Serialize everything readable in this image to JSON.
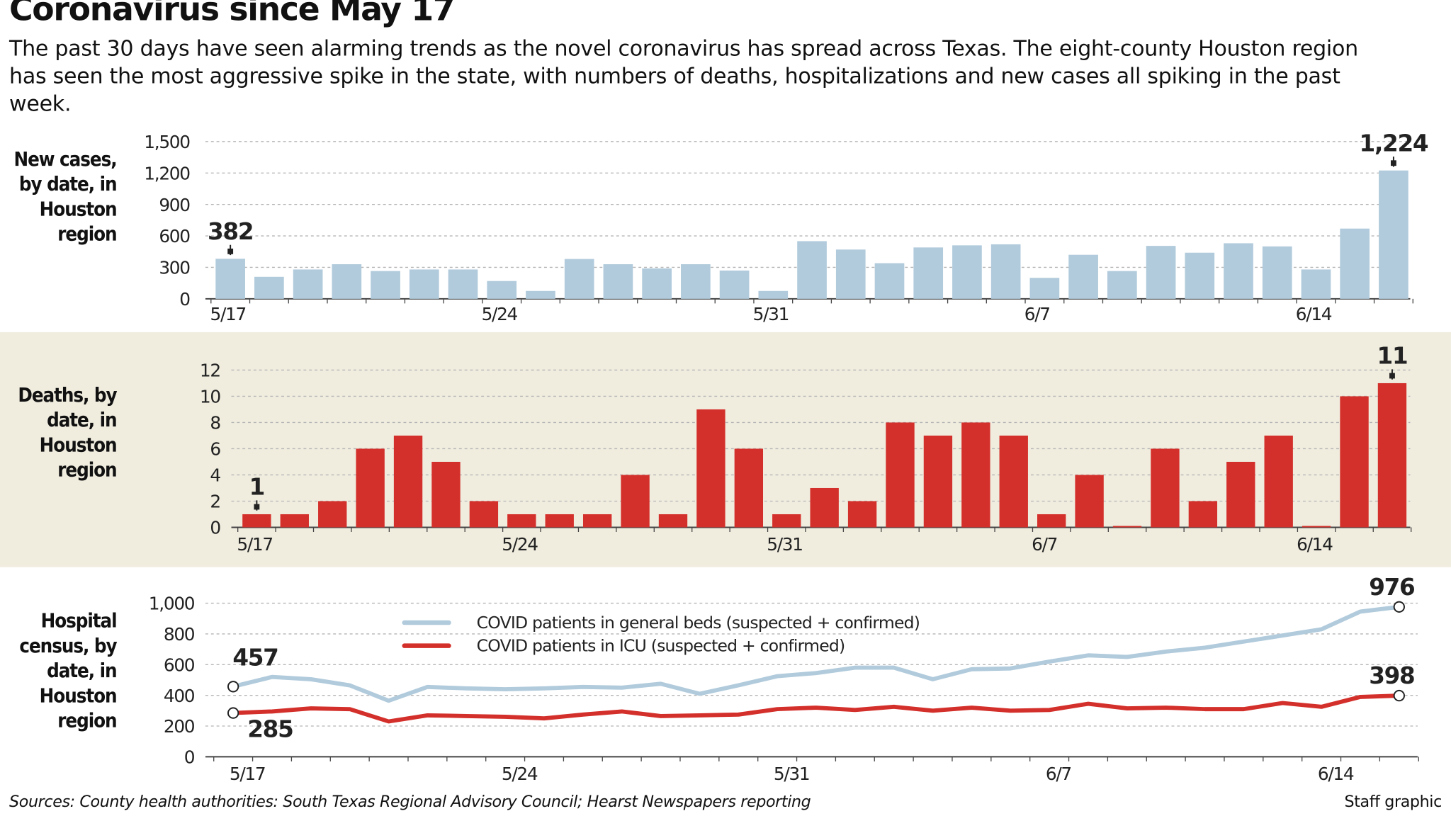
{
  "header": {
    "title": "Coronavirus since May 17",
    "intro": "The past 30 days have seen alarming trends as the novel coronavirus has spread across Texas. The eight-county Houston region has seen the most aggressive spike in the state, with numbers of deaths, hospitalizations and new cases all spiking in the past week."
  },
  "footer": {
    "sources": "Sources: County health authorities:  South Texas Regional Advisory Council; Hearst Newspapers reporting",
    "credit": "Staff graphic"
  },
  "colors": {
    "bars_cases": "#b1cbdc",
    "bars_deaths": "#d4302b",
    "line_general": "#b1cbdc",
    "line_icu": "#d4302b",
    "band": "#f0eddf"
  },
  "chart_data": [
    {
      "type": "bar",
      "title": "New cases, by date, in Houston region",
      "x": [
        "5/17",
        "5/18",
        "5/19",
        "5/20",
        "5/21",
        "5/22",
        "5/23",
        "5/24",
        "5/25",
        "5/26",
        "5/27",
        "5/28",
        "5/29",
        "5/30",
        "5/31",
        "6/1",
        "6/2",
        "6/3",
        "6/4",
        "6/5",
        "6/6",
        "6/7",
        "6/8",
        "6/9",
        "6/10",
        "6/11",
        "6/12",
        "6/13",
        "6/14",
        "6/15",
        "6/16"
      ],
      "x_tick_labels": [
        "5/17",
        "5/24",
        "5/31",
        "6/7",
        "6/14"
      ],
      "values": [
        382,
        210,
        280,
        330,
        265,
        280,
        280,
        170,
        75,
        380,
        330,
        290,
        330,
        270,
        75,
        550,
        470,
        340,
        490,
        510,
        520,
        200,
        420,
        265,
        505,
        440,
        530,
        500,
        280,
        670,
        1224
      ],
      "ylim": [
        0,
        1500
      ],
      "y_ticks": [
        0,
        300,
        600,
        900,
        1200,
        1500
      ],
      "y_tick_labels": [
        "0",
        "300",
        "600",
        "900",
        "1,200",
        "1,500"
      ],
      "grid": true,
      "annotations": [
        {
          "x": "5/17",
          "text": "382"
        },
        {
          "x": "6/16",
          "text": "1,224"
        }
      ]
    },
    {
      "type": "bar",
      "title": "Deaths, by date, in Houston region",
      "x": [
        "5/17",
        "5/18",
        "5/19",
        "5/20",
        "5/21",
        "5/22",
        "5/23",
        "5/24",
        "5/25",
        "5/26",
        "5/27",
        "5/28",
        "5/29",
        "5/30",
        "5/31",
        "6/1",
        "6/2",
        "6/3",
        "6/4",
        "6/5",
        "6/6",
        "6/7",
        "6/8",
        "6/9",
        "6/10",
        "6/11",
        "6/12",
        "6/13",
        "6/14",
        "6/15",
        "6/16"
      ],
      "x_tick_labels": [
        "5/17",
        "5/24",
        "5/31",
        "6/7",
        "6/14"
      ],
      "values": [
        1,
        1,
        2,
        6,
        7,
        5,
        2,
        1,
        1,
        1,
        4,
        1,
        9,
        6,
        1,
        3,
        2,
        8,
        7,
        8,
        7,
        1,
        4,
        0,
        6,
        2,
        5,
        7,
        0,
        10,
        11
      ],
      "ylim": [
        0,
        12
      ],
      "y_ticks": [
        0,
        2,
        4,
        6,
        8,
        10,
        12
      ],
      "y_tick_labels": [
        "0",
        "2",
        "4",
        "6",
        "8",
        "10",
        "12"
      ],
      "grid": true,
      "annotations": [
        {
          "x": "5/17",
          "text": "1"
        },
        {
          "x": "6/16",
          "text": "11"
        }
      ]
    },
    {
      "type": "line",
      "title": "Hospital census, by date, in Houston region",
      "x": [
        "5/17",
        "5/18",
        "5/19",
        "5/20",
        "5/21",
        "5/22",
        "5/23",
        "5/24",
        "5/25",
        "5/26",
        "5/27",
        "5/28",
        "5/29",
        "5/30",
        "5/31",
        "6/1",
        "6/2",
        "6/3",
        "6/4",
        "6/5",
        "6/6",
        "6/7",
        "6/8",
        "6/9",
        "6/10",
        "6/11",
        "6/12",
        "6/13",
        "6/14",
        "6/15",
        "6/16"
      ],
      "x_tick_labels": [
        "5/17",
        "5/24",
        "5/31",
        "6/7",
        "6/14"
      ],
      "series": [
        {
          "name": "COVID patients in general beds (suspected + confirmed)",
          "values": [
            457,
            520,
            505,
            465,
            365,
            455,
            445,
            440,
            445,
            455,
            450,
            475,
            410,
            465,
            525,
            545,
            580,
            580,
            505,
            570,
            575,
            620,
            660,
            650,
            685,
            710,
            750,
            790,
            830,
            945,
            976
          ]
        },
        {
          "name": "COVID patients in ICU (suspected + confirmed)",
          "values": [
            285,
            295,
            315,
            310,
            230,
            270,
            265,
            260,
            250,
            275,
            295,
            265,
            270,
            275,
            310,
            320,
            305,
            325,
            300,
            320,
            300,
            305,
            345,
            315,
            320,
            310,
            310,
            350,
            325,
            390,
            398
          ]
        }
      ],
      "ylim": [
        0,
        1000
      ],
      "y_ticks": [
        0,
        200,
        400,
        600,
        800,
        1000
      ],
      "y_tick_labels": [
        "0",
        "200",
        "400",
        "600",
        "800",
        "1,000"
      ],
      "grid": true,
      "legend_position": "top-center",
      "annotations": [
        {
          "x": "5/17",
          "text": "457"
        },
        {
          "x": "6/16",
          "text": "976"
        },
        {
          "x": "5/17",
          "text": "285"
        },
        {
          "x": "6/16",
          "text": "398"
        }
      ]
    }
  ]
}
